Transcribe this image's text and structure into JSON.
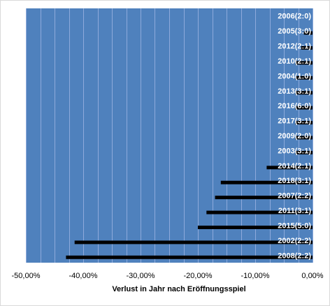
{
  "colors": {
    "plot_background": "#4f81bd",
    "gridline": "#8eaadb",
    "bar": "#000000",
    "label_text": "#ffffff"
  },
  "chart_data": {
    "type": "bar",
    "orientation": "horizontal",
    "categories": [
      "2006(2:0)",
      "2005(3:0)",
      "2012(2:1)",
      "2010(2:1)",
      "2004(1:0)",
      "2013(3:1)",
      "2016(6:0)",
      "2017(3:1)",
      "2009(2:0)",
      "2003(3:1)",
      "2014(2:1)",
      "2018(3:1)",
      "2007(2:2)",
      "2011(3:1)",
      "2015(5:0)",
      "2002(2:2)",
      "2008(2:2)"
    ],
    "values": [
      0.0,
      -0.015,
      -0.02,
      -0.03,
      -0.03,
      -0.03,
      -0.03,
      -0.03,
      -0.03,
      -0.03,
      -0.08,
      -0.16,
      -0.17,
      -0.185,
      -0.2,
      -0.415,
      -0.43
    ],
    "xlabel": "Verlust in Jahr nach Eröffnungsspiel",
    "ylabel": "",
    "xlim": [
      -0.5,
      0.0
    ],
    "x_ticks": [
      -0.5,
      -0.4,
      -0.3,
      -0.2,
      -0.1,
      0.0
    ],
    "x_tick_labels": [
      "-50,00%",
      "-40,00%",
      "-30,00%",
      "-20,00%",
      "-10,00%",
      "0,00%"
    ],
    "minor_gridline_step": 0.025,
    "grid": true,
    "data_labels_position": "inside right end",
    "legend": "none"
  }
}
